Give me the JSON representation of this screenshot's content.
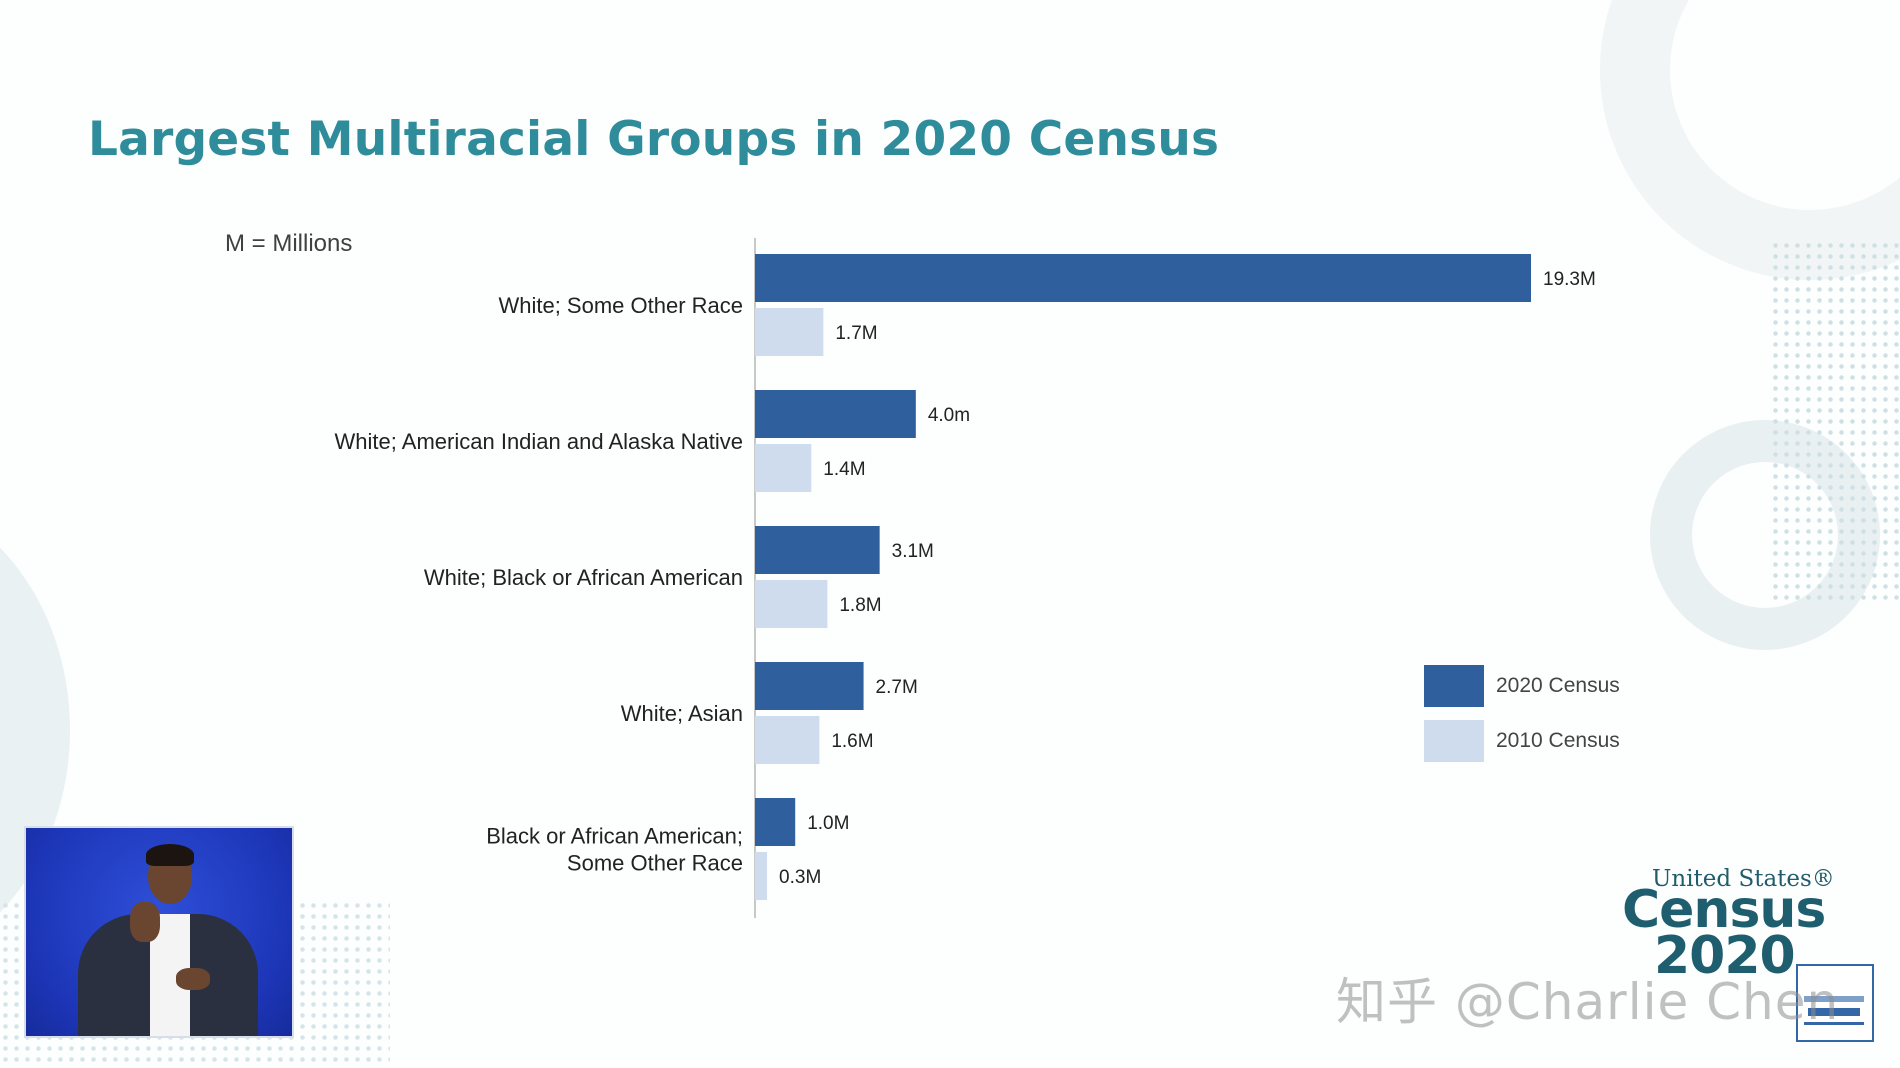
{
  "title": "Largest Multiracial Groups in 2020 Census",
  "units_note": "M = Millions",
  "colors": {
    "title": "#2f8c9a",
    "series_2020": "#2f5f9c",
    "series_2010": "#cfdcee",
    "axis": "#c8c8c8",
    "text": "#222222"
  },
  "chart_data": {
    "type": "bar",
    "orientation": "horizontal",
    "title": "Largest Multiracial Groups in 2020 Census",
    "xlabel": "",
    "ylabel": "",
    "xlim": [
      0,
      19.3
    ],
    "unit": "Millions",
    "categories": [
      [
        "White; Some Other Race"
      ],
      [
        "White; American Indian and Alaska Native"
      ],
      [
        "White; Black or African American"
      ],
      [
        "White; Asian"
      ],
      [
        "Black or African American;",
        "Some Other Race"
      ]
    ],
    "series": [
      {
        "name": "2020 Census",
        "values": [
          19.3,
          4.0,
          3.1,
          2.7,
          1.0
        ],
        "labels": [
          "19.3M",
          "4.0m",
          "3.1M",
          "2.7M",
          "1.0M"
        ]
      },
      {
        "name": "2010 Census",
        "values": [
          1.7,
          1.4,
          1.8,
          1.6,
          0.3
        ],
        "labels": [
          "1.7M",
          "1.4M",
          "1.8M",
          "1.6M",
          "0.3M"
        ]
      }
    ],
    "legend": {
      "position": "right"
    }
  },
  "legend": {
    "items": [
      {
        "label": "2020 Census",
        "color": "#2f5f9c"
      },
      {
        "label": "2010 Census",
        "color": "#cfdcee"
      }
    ]
  },
  "logo": {
    "line1": "United States®",
    "line2": "Census",
    "line3": "2020"
  },
  "watermark": "知乎 @Charlie Chen"
}
